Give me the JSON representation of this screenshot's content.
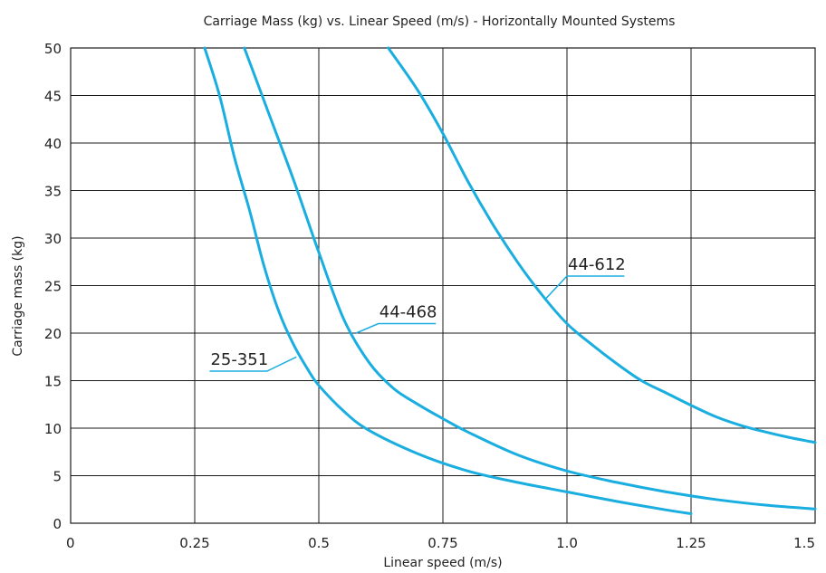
{
  "chart_data": {
    "type": "line",
    "title": "Carriage Mass (kg) vs. Linear Speed (m/s) - Horizontally Mounted Systems",
    "xlabel": "Linear speed (m/s)",
    "ylabel": "Carriage mass (kg)",
    "xlim": [
      0,
      1.5
    ],
    "ylim": [
      0,
      50
    ],
    "x_ticks": [
      {
        "value": 0,
        "label": "0"
      },
      {
        "value": 0.25,
        "label": "0.25"
      },
      {
        "value": 0.5,
        "label": "0.5"
      },
      {
        "value": 0.75,
        "label": "0.75"
      },
      {
        "value": 1.0,
        "label": "1.0"
      },
      {
        "value": 1.25,
        "label": "1.25"
      },
      {
        "value": 1.5,
        "label": "1.5"
      }
    ],
    "y_ticks": [
      {
        "value": 0,
        "label": "0"
      },
      {
        "value": 5,
        "label": "5"
      },
      {
        "value": 10,
        "label": "10"
      },
      {
        "value": 15,
        "label": "15"
      },
      {
        "value": 20,
        "label": "20"
      },
      {
        "value": 25,
        "label": "25"
      },
      {
        "value": 30,
        "label": "30"
      },
      {
        "value": 35,
        "label": "35"
      },
      {
        "value": 40,
        "label": "40"
      },
      {
        "value": 45,
        "label": "45"
      },
      {
        "value": 50,
        "label": "50"
      }
    ],
    "grid": true,
    "line_color": "#1aaee0",
    "series": [
      {
        "name": "25-351",
        "x": [
          0.27,
          0.3,
          0.33,
          0.36,
          0.39,
          0.42,
          0.45,
          0.48,
          0.5,
          0.55,
          0.6,
          0.7,
          0.8,
          0.9,
          1.0,
          1.1,
          1.2,
          1.25
        ],
        "y": [
          50,
          45,
          38.5,
          33,
          27,
          22.2,
          18.7,
          16,
          14.5,
          11.8,
          9.8,
          7.3,
          5.5,
          4.3,
          3.3,
          2.3,
          1.4,
          1.0
        ],
        "label_at": {
          "x": 0.455,
          "y": 17.5
        },
        "label_pos": {
          "x": 0.28,
          "y": 16
        }
      },
      {
        "name": "44-468",
        "x": [
          0.35,
          0.4,
          0.45,
          0.5,
          0.55,
          0.6,
          0.65,
          0.7,
          0.75,
          0.8,
          0.9,
          1.0,
          1.1,
          1.2,
          1.3,
          1.4,
          1.5
        ],
        "y": [
          50,
          43,
          36,
          28.5,
          21.5,
          17,
          14.2,
          12.5,
          11,
          9.6,
          7.2,
          5.5,
          4.3,
          3.3,
          2.5,
          1.9,
          1.5
        ],
        "label_at": {
          "x": 0.575,
          "y": 20
        },
        "label_pos": {
          "x": 0.62,
          "y": 21
        }
      },
      {
        "name": "44-612",
        "x": [
          0.64,
          0.7,
          0.75,
          0.8,
          0.85,
          0.9,
          0.95,
          1.0,
          1.05,
          1.1,
          1.15,
          1.2,
          1.25,
          1.3,
          1.35,
          1.4,
          1.45,
          1.5
        ],
        "y": [
          50,
          45.5,
          41,
          36,
          31.5,
          27.5,
          24,
          21,
          18.8,
          16.8,
          15,
          13.7,
          12.4,
          11.2,
          10.3,
          9.6,
          9.0,
          8.5
        ],
        "label_at": {
          "x": 0.955,
          "y": 23.5
        },
        "label_pos": {
          "x": 1.0,
          "y": 26
        }
      }
    ]
  }
}
